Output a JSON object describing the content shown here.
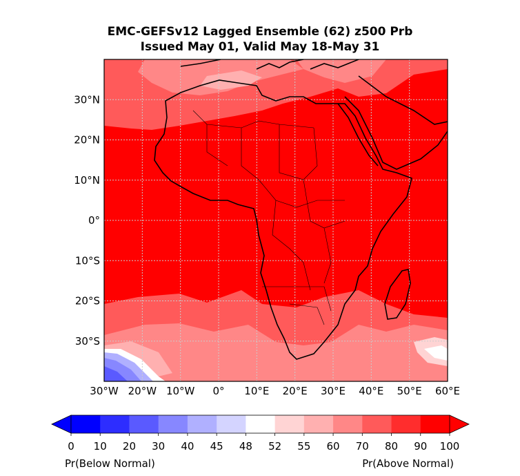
{
  "title": {
    "line1": "EMC-GEFSv12 Lagged Ensemble (62) z500 Prb",
    "line2": "Issued May 01, Valid May 18-May 31"
  },
  "map": {
    "lon_range": [
      -30,
      60
    ],
    "lat_range": [
      -40,
      40
    ],
    "lat_ticks": [
      {
        "value": 30,
        "label": "30°N"
      },
      {
        "value": 20,
        "label": "20°N"
      },
      {
        "value": 10,
        "label": "10°N"
      },
      {
        "value": 0,
        "label": "0°"
      },
      {
        "value": -10,
        "label": "10°S"
      },
      {
        "value": -20,
        "label": "20°S"
      },
      {
        "value": -30,
        "label": "30°S"
      }
    ],
    "lon_ticks": [
      {
        "value": -30,
        "label": "30°W"
      },
      {
        "value": -20,
        "label": "20°W"
      },
      {
        "value": -10,
        "label": "10°W"
      },
      {
        "value": 0,
        "label": "0°"
      },
      {
        "value": 10,
        "label": "10°E"
      },
      {
        "value": 20,
        "label": "20°E"
      },
      {
        "value": 30,
        "label": "30°E"
      },
      {
        "value": 40,
        "label": "40°E"
      },
      {
        "value": 50,
        "label": "50°E"
      },
      {
        "value": 60,
        "label": "60°E"
      }
    ],
    "gridlines": true
  },
  "colorbar": {
    "bounds": [
      "0",
      "10",
      "20",
      "30",
      "40",
      "45",
      "48",
      "52",
      "55",
      "60",
      "70",
      "80",
      "90",
      "100"
    ],
    "colors": [
      "#0000ff",
      "#2d2dff",
      "#5a5aff",
      "#8787ff",
      "#b0b0ff",
      "#d4d4ff",
      "#ffffff",
      "#ffd4d4",
      "#ffb0b0",
      "#ff8787",
      "#ff5a5a",
      "#ff2d2d",
      "#ff0000"
    ],
    "left_label": "Pr(Below Normal)",
    "right_label": "Pr(Above Normal)"
  }
}
